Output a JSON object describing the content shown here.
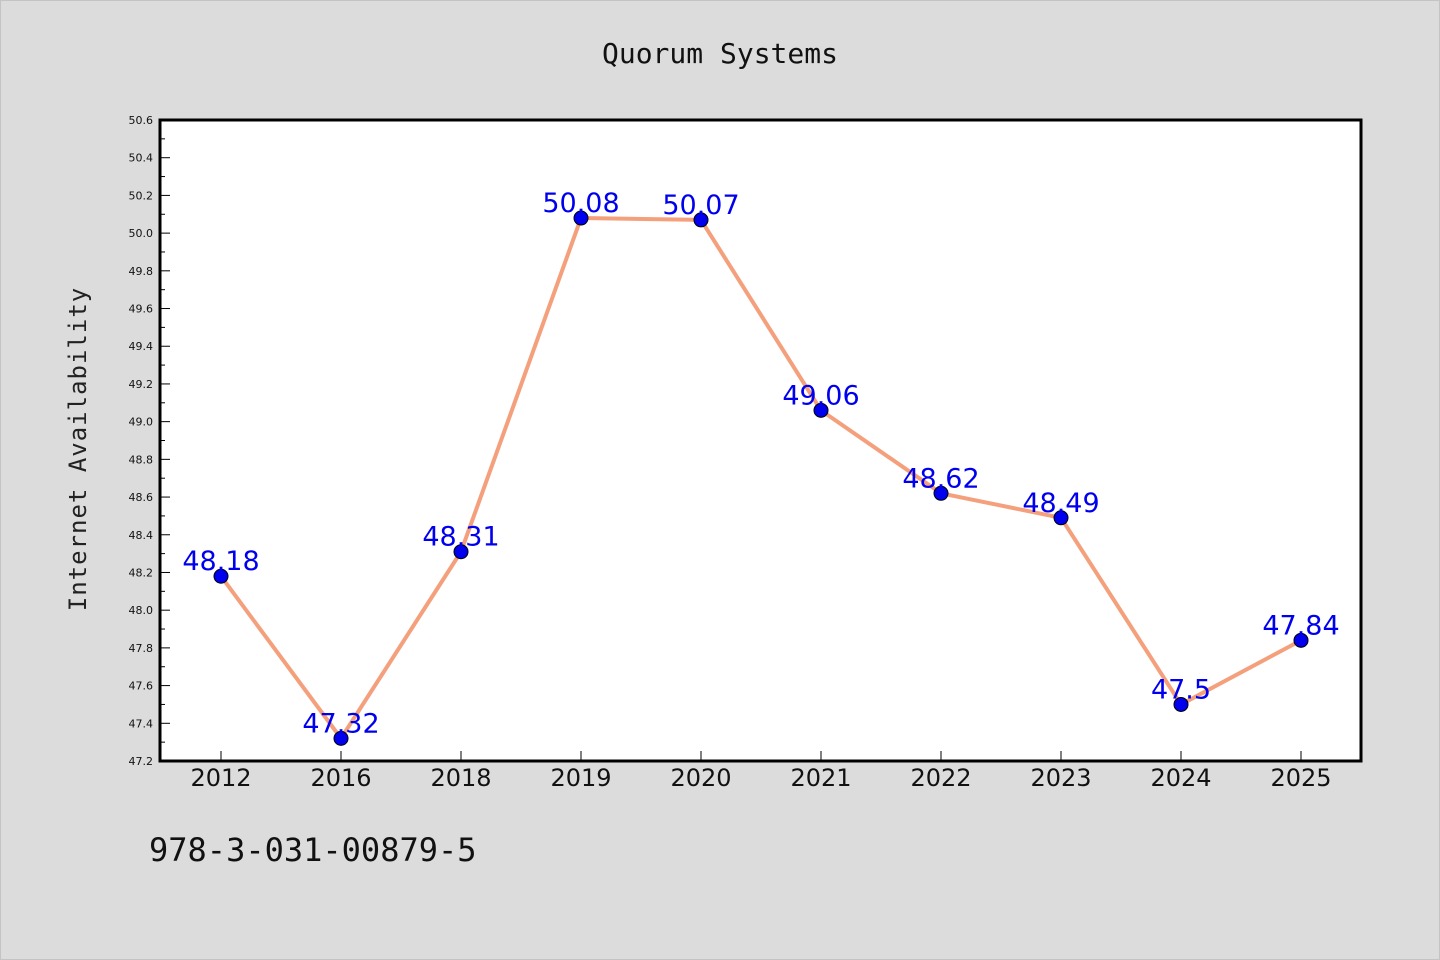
{
  "chart_data": {
    "type": "line",
    "title": "Quorum Systems",
    "xlabel": "",
    "ylabel": "Internet Availability",
    "categories": [
      "2012",
      "2016",
      "2018",
      "2019",
      "2020",
      "2021",
      "2022",
      "2023",
      "2024",
      "2025"
    ],
    "series": [
      {
        "values": [
          48.18,
          47.32,
          48.31,
          50.08,
          50.07,
          49.06,
          48.62,
          48.49,
          47.5,
          47.84
        ],
        "labels": [
          "48.18",
          "47.32",
          "48.31",
          "50.08",
          "50.07",
          "49.06",
          "48.62",
          "48.49",
          "47.5",
          "47.84"
        ]
      }
    ],
    "ylim": [
      47.2,
      50.6
    ],
    "yticks": [
      "47.2",
      "47.4",
      "47.6",
      "47.8",
      "48.0",
      "48.2",
      "48.4",
      "48.6",
      "48.8",
      "49.0",
      "49.2",
      "49.4",
      "49.6",
      "49.8",
      "50.0",
      "50.2",
      "50.4",
      "50.6"
    ],
    "grid": false,
    "legend": "none",
    "colors": {
      "line": "#f4a07c",
      "marker": "#0000ee",
      "label": "#0000ee",
      "background": "#dcdcdc",
      "plot_background": "#ffffff"
    }
  },
  "footer": {
    "code": "978-3-031-00879-5"
  }
}
